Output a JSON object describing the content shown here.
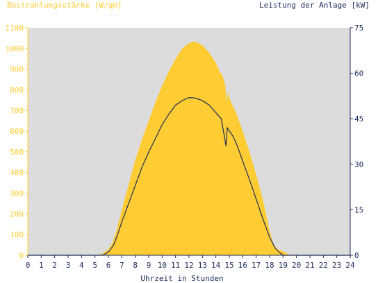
{
  "chart_data": {
    "type": "area",
    "ylabel_left": "Bestrahlungsstärke [W/qm]",
    "ylabel_right": "Leistung der Anlage [kW]",
    "xlabel": "Uhrzeit in Stunden",
    "xlim": [
      0,
      24
    ],
    "ylim_left": [
      0,
      1100
    ],
    "ylim_right": [
      0,
      75
    ],
    "x_ticks": [
      "0",
      "1",
      "2",
      "3",
      "4",
      "5",
      "6",
      "7",
      "8",
      "9",
      "10",
      "11",
      "12",
      "13",
      "14",
      "15",
      "16",
      "17",
      "18",
      "19",
      "20",
      "21",
      "22",
      "23",
      "24"
    ],
    "y_left_ticks": [
      "0",
      "100",
      "200",
      "300",
      "400",
      "500",
      "600",
      "700",
      "800",
      "900",
      "1000",
      "1100"
    ],
    "y_right_ticks": [
      "0",
      "15",
      "30",
      "45",
      "60",
      "75"
    ],
    "colors": {
      "plot_background": "#dcdcdc",
      "irradiance_fill": "#ffcc33",
      "left_axis": "#ffcc33",
      "power_line": "#1a2a5a",
      "right_axis": "#1a2a5a"
    },
    "series": [
      {
        "axis": "left",
        "style": "area",
        "points": [
          [
            0,
            0
          ],
          [
            5.0,
            0
          ],
          [
            5.5,
            5
          ],
          [
            6.0,
            30
          ],
          [
            6.3,
            60
          ],
          [
            6.6,
            120
          ],
          [
            7.0,
            220
          ],
          [
            7.5,
            340
          ],
          [
            8.0,
            460
          ],
          [
            8.5,
            560
          ],
          [
            9.0,
            650
          ],
          [
            9.5,
            740
          ],
          [
            10.0,
            820
          ],
          [
            10.5,
            890
          ],
          [
            11.0,
            950
          ],
          [
            11.5,
            1000
          ],
          [
            12.0,
            1025
          ],
          [
            12.3,
            1033
          ],
          [
            12.6,
            1030
          ],
          [
            13.0,
            1015
          ],
          [
            13.5,
            980
          ],
          [
            14.0,
            930
          ],
          [
            14.3,
            885
          ],
          [
            14.5,
            870
          ],
          [
            14.7,
            820
          ],
          [
            14.8,
            740
          ],
          [
            14.9,
            790
          ],
          [
            15.0,
            760
          ],
          [
            15.2,
            730
          ],
          [
            15.5,
            690
          ],
          [
            16.0,
            600
          ],
          [
            16.5,
            500
          ],
          [
            17.0,
            390
          ],
          [
            17.5,
            270
          ],
          [
            18.0,
            120
          ],
          [
            18.3,
            50
          ],
          [
            18.6,
            30
          ],
          [
            19.0,
            20
          ],
          [
            19.3,
            8
          ],
          [
            19.6,
            0
          ],
          [
            24,
            0
          ]
        ]
      },
      {
        "axis": "right",
        "style": "line",
        "points": [
          [
            0,
            0
          ],
          [
            5.5,
            0
          ],
          [
            5.8,
            0.5
          ],
          [
            6.1,
            1.5
          ],
          [
            6.4,
            3.5
          ],
          [
            6.7,
            7
          ],
          [
            7.0,
            11
          ],
          [
            7.5,
            17
          ],
          [
            8.0,
            23
          ],
          [
            8.5,
            29
          ],
          [
            9.0,
            34
          ],
          [
            9.5,
            38.5
          ],
          [
            10.0,
            43
          ],
          [
            10.5,
            46.5
          ],
          [
            11.0,
            49.5
          ],
          [
            11.5,
            51
          ],
          [
            12.0,
            52
          ],
          [
            12.5,
            51.8
          ],
          [
            13.0,
            51
          ],
          [
            13.5,
            49.5
          ],
          [
            14.0,
            47
          ],
          [
            14.4,
            45
          ],
          [
            14.6,
            40
          ],
          [
            14.75,
            36
          ],
          [
            14.85,
            42
          ],
          [
            15.0,
            41
          ],
          [
            15.3,
            39
          ],
          [
            15.6,
            36
          ],
          [
            16.0,
            31
          ],
          [
            16.5,
            25
          ],
          [
            17.0,
            18.5
          ],
          [
            17.5,
            12
          ],
          [
            18.0,
            6
          ],
          [
            18.4,
            2.5
          ],
          [
            18.7,
            1
          ],
          [
            19.0,
            0
          ],
          [
            24,
            0
          ]
        ]
      }
    ]
  }
}
